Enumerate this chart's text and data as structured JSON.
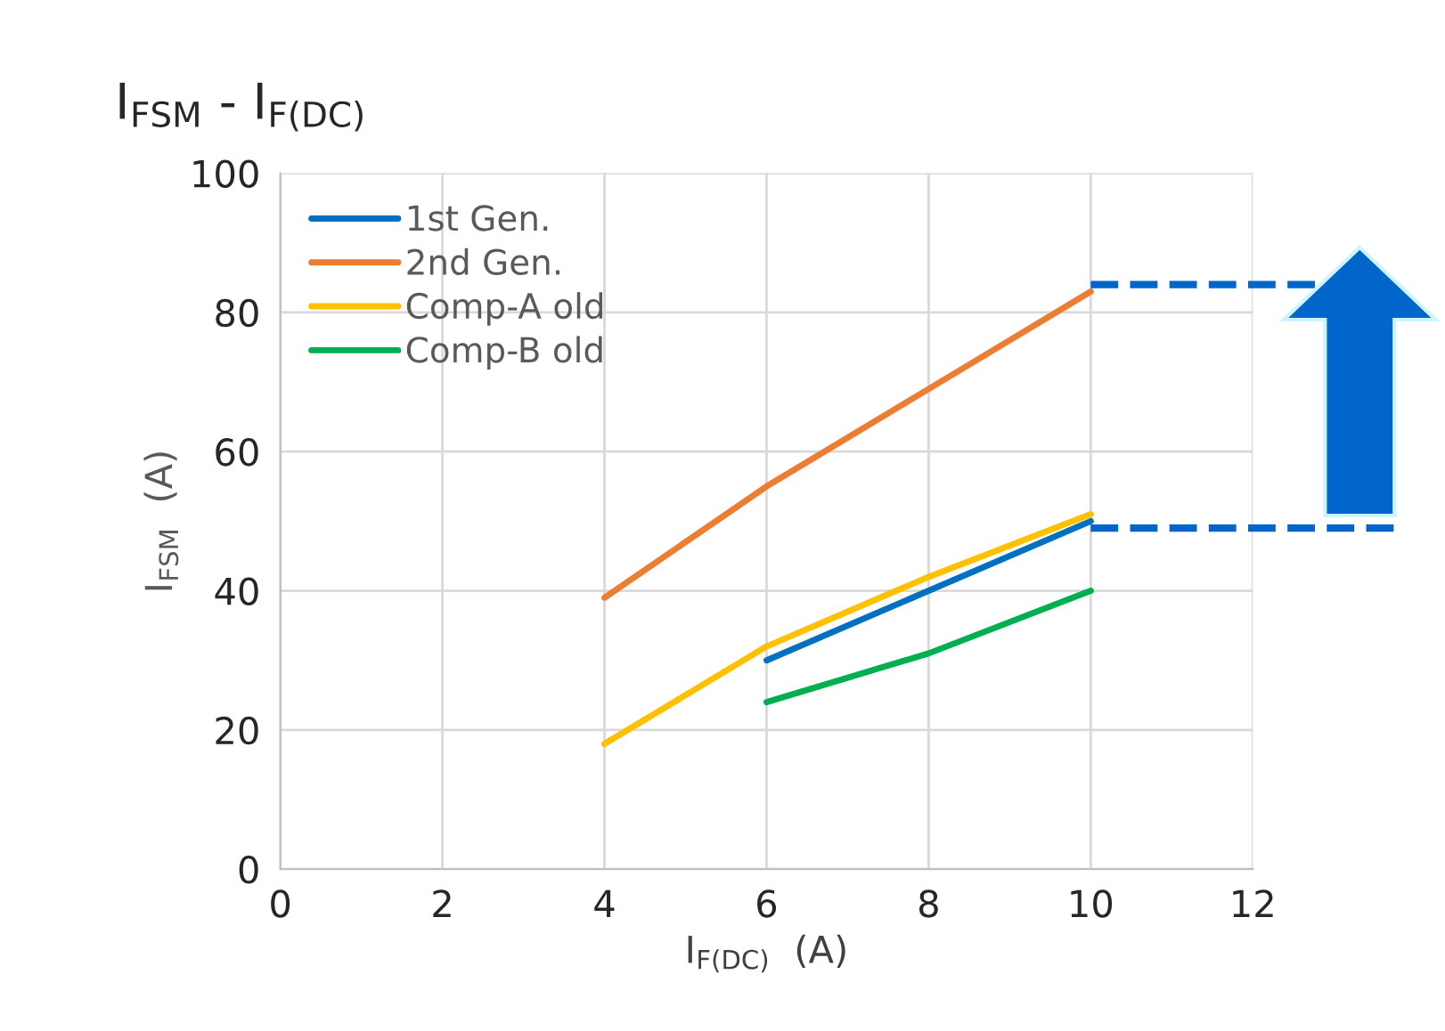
{
  "chart_data": {
    "type": "line",
    "title": "I$_{FSM}$ - I$_{F(DC)}$",
    "xlabel": "I$_{F(DC)}$  (A)",
    "ylabel": "I$_{FSM}$  (A)",
    "series": [
      {
        "name": "1st Gen.",
        "color": "#0070c0",
        "x": [
          6,
          8,
          10
        ],
        "values": [
          30,
          40,
          50
        ]
      },
      {
        "name": "2nd Gen.",
        "color": "#ed7d31",
        "x": [
          4,
          6,
          8,
          10
        ],
        "values": [
          39,
          55,
          69,
          83
        ]
      },
      {
        "name": "Comp-A old",
        "color": "#ffc000",
        "x": [
          4,
          6,
          8,
          10
        ],
        "values": [
          18,
          32,
          42,
          51
        ]
      },
      {
        "name": "Comp-B old",
        "color": "#00b050",
        "x": [
          6,
          8,
          10
        ],
        "values": [
          24,
          31,
          40
        ]
      }
    ],
    "xlim": [
      0,
      12
    ],
    "xticks": [
      0,
      2,
      4,
      6,
      8,
      10,
      12
    ],
    "ylim": [
      0,
      100
    ],
    "yticks": [
      0,
      20,
      40,
      60,
      80,
      100
    ],
    "ref_lines": [
      {
        "axis": "y",
        "value": 84,
        "color": "#0066cc",
        "line_style": "dashed"
      },
      {
        "axis": "y",
        "value": 49,
        "color": "#0066cc",
        "line_style": "dashed"
      }
    ],
    "grid": true,
    "legend": "top left",
    "marker": "none",
    "line_style": "solid"
  }
}
